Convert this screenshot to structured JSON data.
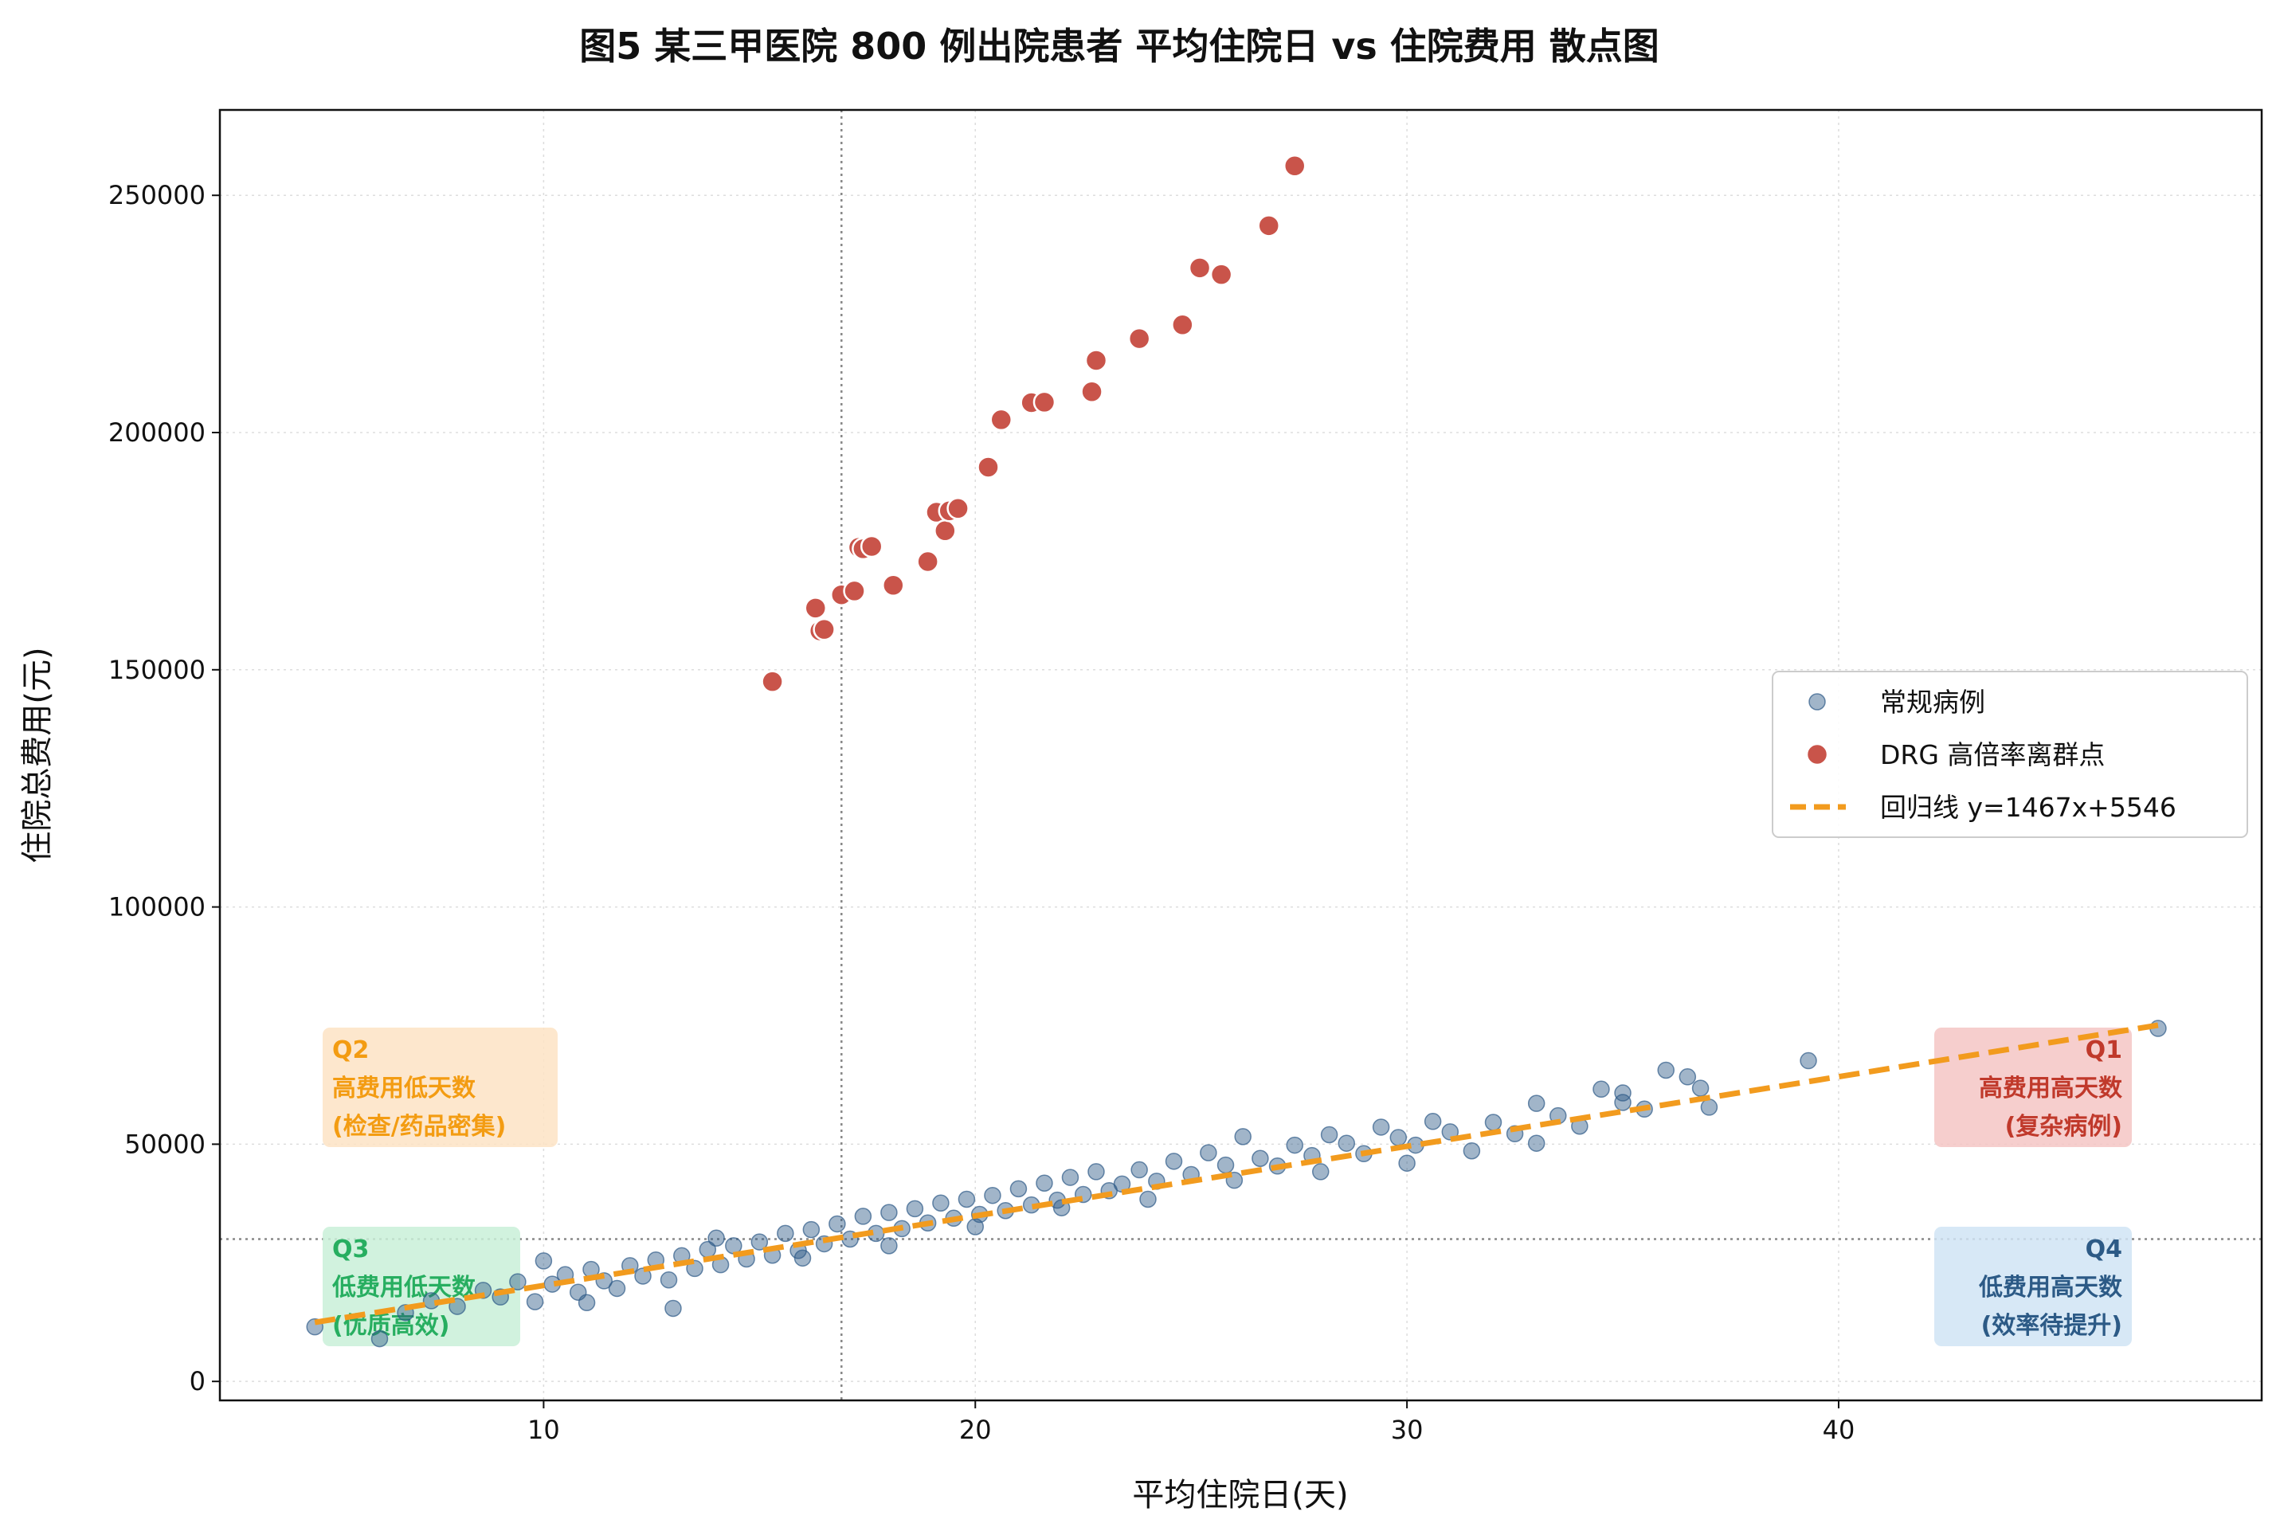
{
  "chart_data": {
    "type": "scatter",
    "title": "图5 某三甲医院 800 例出院患者 平均住院日 vs 住院费用 散点图",
    "xlabel": "平均住院日(天)",
    "ylabel": "住院总费用(元)",
    "xlim": [
      2.5,
      49.8
    ],
    "ylim": [
      -4000,
      268000
    ],
    "xticks": [
      10,
      20,
      30,
      40
    ],
    "yticks": [
      0,
      50000,
      100000,
      150000,
      200000,
      250000
    ],
    "grid": true,
    "legend_position": "center-right",
    "reference_lines": {
      "x": 16.9,
      "y": 30000
    },
    "series": [
      {
        "name": "常规病例",
        "color": "#2e5a87",
        "points_note": "",
        "points": [
          [
            4.7,
            11500
          ],
          [
            6.2,
            9000
          ],
          [
            6.8,
            14500
          ],
          [
            7.4,
            17000
          ],
          [
            8.0,
            15800
          ],
          [
            8.6,
            19200
          ],
          [
            9.0,
            17800
          ],
          [
            9.4,
            21000
          ],
          [
            9.8,
            16800
          ],
          [
            10.2,
            20500
          ],
          [
            10.5,
            22500
          ],
          [
            10.8,
            18800
          ],
          [
            11.1,
            23600
          ],
          [
            11.4,
            21200
          ],
          [
            11.7,
            19600
          ],
          [
            12.0,
            24400
          ],
          [
            12.3,
            22200
          ],
          [
            12.6,
            25600
          ],
          [
            12.9,
            21400
          ],
          [
            13.2,
            26500
          ],
          [
            13.5,
            23800
          ],
          [
            13.8,
            27800
          ],
          [
            14.1,
            24600
          ],
          [
            14.4,
            28600
          ],
          [
            14.7,
            25800
          ],
          [
            15.0,
            29400
          ],
          [
            15.3,
            26600
          ],
          [
            15.6,
            31200
          ],
          [
            15.9,
            27600
          ],
          [
            16.2,
            32000
          ],
          [
            16.5,
            29000
          ],
          [
            16.8,
            33200
          ],
          [
            17.1,
            30000
          ],
          [
            17.4,
            34800
          ],
          [
            17.7,
            31200
          ],
          [
            18.0,
            35600
          ],
          [
            18.3,
            32200
          ],
          [
            18.6,
            36400
          ],
          [
            18.9,
            33400
          ],
          [
            19.2,
            37600
          ],
          [
            19.5,
            34400
          ],
          [
            19.8,
            38400
          ],
          [
            20.1,
            35200
          ],
          [
            20.4,
            39200
          ],
          [
            20.7,
            36000
          ],
          [
            21.0,
            40600
          ],
          [
            21.3,
            37200
          ],
          [
            21.6,
            41800
          ],
          [
            21.9,
            38200
          ],
          [
            22.2,
            43000
          ],
          [
            22.5,
            39400
          ],
          [
            22.8,
            44200
          ],
          [
            23.1,
            40200
          ],
          [
            23.4,
            41600
          ],
          [
            23.8,
            44600
          ],
          [
            24.2,
            42200
          ],
          [
            24.6,
            46400
          ],
          [
            25.0,
            43600
          ],
          [
            25.4,
            48200
          ],
          [
            25.8,
            45600
          ],
          [
            26.2,
            51600
          ],
          [
            26.6,
            47000
          ],
          [
            27.0,
            45400
          ],
          [
            27.4,
            49800
          ],
          [
            27.8,
            47600
          ],
          [
            28.2,
            52000
          ],
          [
            28.6,
            50200
          ],
          [
            29.0,
            48000
          ],
          [
            29.4,
            53600
          ],
          [
            29.8,
            51400
          ],
          [
            30.2,
            49800
          ],
          [
            30.6,
            54800
          ],
          [
            31.0,
            52600
          ],
          [
            31.5,
            48600
          ],
          [
            32.0,
            54600
          ],
          [
            32.5,
            52200
          ],
          [
            33.0,
            50200
          ],
          [
            33.5,
            56000
          ],
          [
            34.0,
            53800
          ],
          [
            34.5,
            61600
          ],
          [
            35.0,
            58800
          ],
          [
            35.5,
            57400
          ],
          [
            36.0,
            65600
          ],
          [
            36.5,
            64200
          ],
          [
            37.0,
            57800
          ],
          [
            39.3,
            67600
          ],
          [
            47.4,
            74400
          ],
          [
            10.0,
            25400
          ],
          [
            11.0,
            16600
          ],
          [
            13.0,
            15400
          ],
          [
            14.0,
            30200
          ],
          [
            16.0,
            26000
          ],
          [
            18.0,
            28600
          ],
          [
            20.0,
            32600
          ],
          [
            22.0,
            36600
          ],
          [
            24.0,
            38400
          ],
          [
            26.0,
            42400
          ],
          [
            28.0,
            44200
          ],
          [
            30.0,
            46000
          ],
          [
            33.0,
            58600
          ],
          [
            35.0,
            60800
          ],
          [
            36.8,
            61800
          ]
        ]
      },
      {
        "name": "DRG 高倍率离群点",
        "color": "#c9544a",
        "points": [
          [
            15.3,
            147500
          ],
          [
            16.3,
            163000
          ],
          [
            16.4,
            158200
          ],
          [
            16.5,
            158500
          ],
          [
            16.9,
            165800
          ],
          [
            17.2,
            166600
          ],
          [
            17.3,
            175800
          ],
          [
            17.4,
            175500
          ],
          [
            17.6,
            176000
          ],
          [
            18.1,
            167800
          ],
          [
            18.9,
            172800
          ],
          [
            19.1,
            183200
          ],
          [
            19.3,
            179300
          ],
          [
            19.4,
            183500
          ],
          [
            19.6,
            184000
          ],
          [
            20.3,
            192700
          ],
          [
            20.6,
            202700
          ],
          [
            21.3,
            206300
          ],
          [
            21.6,
            206400
          ],
          [
            22.7,
            208600
          ],
          [
            22.8,
            215200
          ],
          [
            23.8,
            219800
          ],
          [
            24.8,
            222700
          ],
          [
            25.2,
            234700
          ],
          [
            25.7,
            233300
          ],
          [
            26.8,
            243600
          ],
          [
            27.4,
            256200
          ]
        ]
      },
      {
        "name": "回归线 y=1467x+5546",
        "type": "line",
        "color": "#f29b1e",
        "slope": 1467,
        "intercept": 5546,
        "x_range": [
          4.7,
          47.4
        ]
      }
    ],
    "annotations": [
      {
        "id": "q1",
        "lines": [
          "Q1",
          "高费用高天数",
          "(复杂病例)"
        ],
        "text_color": "#c0392b",
        "bg_color": "#f5c6c4",
        "align": "right"
      },
      {
        "id": "q2",
        "lines": [
          "Q2",
          "高费用低天数",
          "(检查/药品密集)"
        ],
        "text_color": "#f39c12",
        "bg_color": "#fde3c4",
        "align": "left"
      },
      {
        "id": "q3",
        "lines": [
          "Q3",
          "低费用低天数",
          "(优质高效)"
        ],
        "text_color": "#27ae60",
        "bg_color": "#c9f0d8",
        "align": "left"
      },
      {
        "id": "q4",
        "lines": [
          "Q4",
          "低费用高天数",
          "(效率待提升)"
        ],
        "text_color": "#2c5a86",
        "bg_color": "#d0e4f5",
        "align": "right"
      }
    ]
  }
}
